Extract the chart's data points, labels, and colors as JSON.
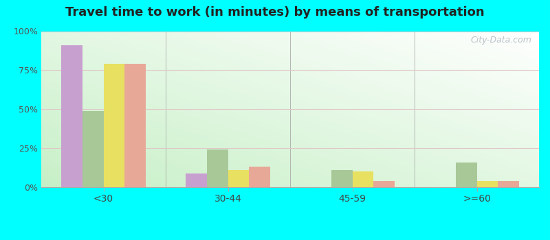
{
  "title": "Travel time to work (in minutes) by means of transportation",
  "categories": [
    "<30",
    "30-44",
    "45-59",
    ">=60"
  ],
  "series": {
    "Public transportation - Leavenworth": [
      91,
      9,
      0,
      0
    ],
    "Public transportation - Kansas": [
      49,
      24,
      11,
      16
    ],
    "Other means - Leavenworth": [
      79,
      11,
      10,
      4
    ],
    "Other means - Kansas": [
      79,
      13,
      4,
      4
    ]
  },
  "colors": {
    "Public transportation - Leavenworth": "#c8a0d0",
    "Public transportation - Kansas": "#a8c898",
    "Other means - Leavenworth": "#e8e060",
    "Other means - Kansas": "#e8a898"
  },
  "ylim": [
    0,
    100
  ],
  "yticks": [
    0,
    25,
    50,
    75,
    100
  ],
  "ytick_labels": [
    "0%",
    "25%",
    "50%",
    "75%",
    "100%"
  ],
  "bg_color_bottom_left": "#c8f0c0",
  "bg_color_top_right": "#f8fff8",
  "outer_background": "#00ffff",
  "bar_width": 0.17,
  "title_fontsize": 13,
  "watermark": "City-Data.com"
}
